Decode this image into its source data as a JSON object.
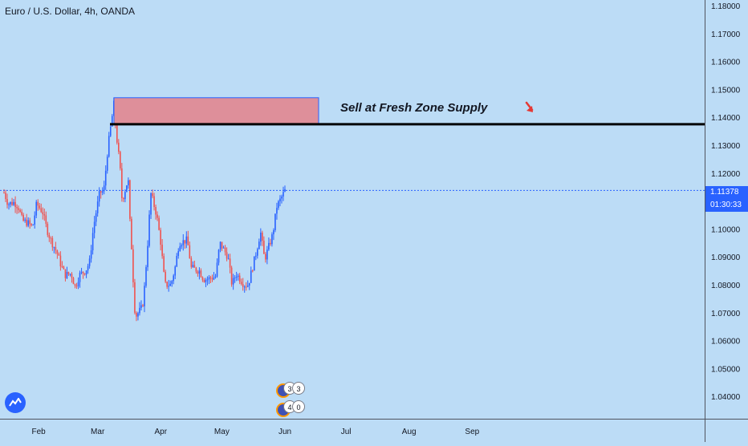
{
  "symbol_title": "Euro / U.S. Dollar, 4h, OANDA",
  "annotation": "Sell at Fresh Zone Supply",
  "last_price": "1.11378",
  "countdown": "01:30:33",
  "colors": {
    "background": "#bcdcf6",
    "up_candle": "#2962ff",
    "down_candle": "#ef5350",
    "supply_zone_fill": "#de8f9a",
    "supply_zone_border": "#2962ff",
    "level_line": "#000000",
    "price_line": "#2962ff",
    "arrow": "#e53935"
  },
  "chart_data": {
    "type": "candlestick",
    "title": "Euro / U.S. Dollar, 4h, OANDA",
    "ylim": [
      1.032,
      1.182
    ],
    "y_ticks": [
      "1.18000",
      "1.17000",
      "1.16000",
      "1.15000",
      "1.14000",
      "1.13000",
      "1.12000",
      "1.11000",
      "1.10000",
      "1.09000",
      "1.08000",
      "1.07000",
      "1.06000",
      "1.05000",
      "1.04000"
    ],
    "x_ticks": [
      "Feb",
      "Mar",
      "Apr",
      "May",
      "Jun",
      "Jul",
      "Aug",
      "Sep"
    ],
    "last_price": 1.11378,
    "supply_zone": {
      "top": 1.147,
      "bottom": 1.1375
    },
    "resistance_level": 1.1375,
    "close_path": [
      [
        "2020-01-15",
        1.113
      ],
      [
        "2020-01-17",
        1.109
      ],
      [
        "2020-01-20",
        1.1095
      ],
      [
        "2020-01-22",
        1.108
      ],
      [
        "2020-01-24",
        1.103
      ],
      [
        "2020-01-27",
        1.102
      ],
      [
        "2020-01-29",
        1.1005
      ],
      [
        "2020-01-31",
        1.109
      ],
      [
        "2020-02-03",
        1.106
      ],
      [
        "2020-02-05",
        1.1
      ],
      [
        "2020-02-07",
        1.096
      ],
      [
        "2020-02-10",
        1.0915
      ],
      [
        "2020-02-12",
        1.087
      ],
      [
        "2020-02-14",
        1.0835
      ],
      [
        "2020-02-17",
        1.084
      ],
      [
        "2020-02-19",
        1.079
      ],
      [
        "2020-02-21",
        1.0835
      ],
      [
        "2020-02-24",
        1.085
      ],
      [
        "2020-02-26",
        1.088
      ],
      [
        "2020-02-28",
        1.101
      ],
      [
        "2020-03-02",
        1.113
      ],
      [
        "2020-03-04",
        1.1135
      ],
      [
        "2020-03-06",
        1.129
      ],
      [
        "2020-03-09",
        1.145
      ],
      [
        "2020-03-10",
        1.135
      ],
      [
        "2020-03-12",
        1.122
      ],
      [
        "2020-03-13",
        1.11
      ],
      [
        "2020-03-16",
        1.118
      ],
      [
        "2020-03-17",
        1.1
      ],
      [
        "2020-03-18",
        1.09
      ],
      [
        "2020-03-19",
        1.072
      ],
      [
        "2020-03-20",
        1.069
      ],
      [
        "2020-03-23",
        1.072
      ],
      [
        "2020-03-24",
        1.079
      ],
      [
        "2020-03-26",
        1.099
      ],
      [
        "2020-03-27",
        1.113
      ],
      [
        "2020-03-30",
        1.105
      ],
      [
        "2020-04-01",
        1.095
      ],
      [
        "2020-04-03",
        1.08
      ],
      [
        "2020-04-06",
        1.08
      ],
      [
        "2020-04-08",
        1.086
      ],
      [
        "2020-04-10",
        1.095
      ],
      [
        "2020-04-14",
        1.096
      ],
      [
        "2020-04-16",
        1.086
      ],
      [
        "2020-04-20",
        1.085
      ],
      [
        "2020-04-22",
        1.082
      ],
      [
        "2020-04-24",
        1.082
      ],
      [
        "2020-04-28",
        1.083
      ],
      [
        "2020-04-30",
        1.095
      ],
      [
        "2020-05-04",
        1.09
      ],
      [
        "2020-05-06",
        1.08
      ],
      [
        "2020-05-08",
        1.084
      ],
      [
        "2020-05-12",
        1.08
      ],
      [
        "2020-05-14",
        1.08
      ],
      [
        "2020-05-18",
        1.092
      ],
      [
        "2020-05-20",
        1.099
      ],
      [
        "2020-05-22",
        1.089
      ],
      [
        "2020-05-26",
        1.098
      ],
      [
        "2020-05-28",
        1.108
      ],
      [
        "2020-06-01",
        1.1137
      ]
    ]
  }
}
